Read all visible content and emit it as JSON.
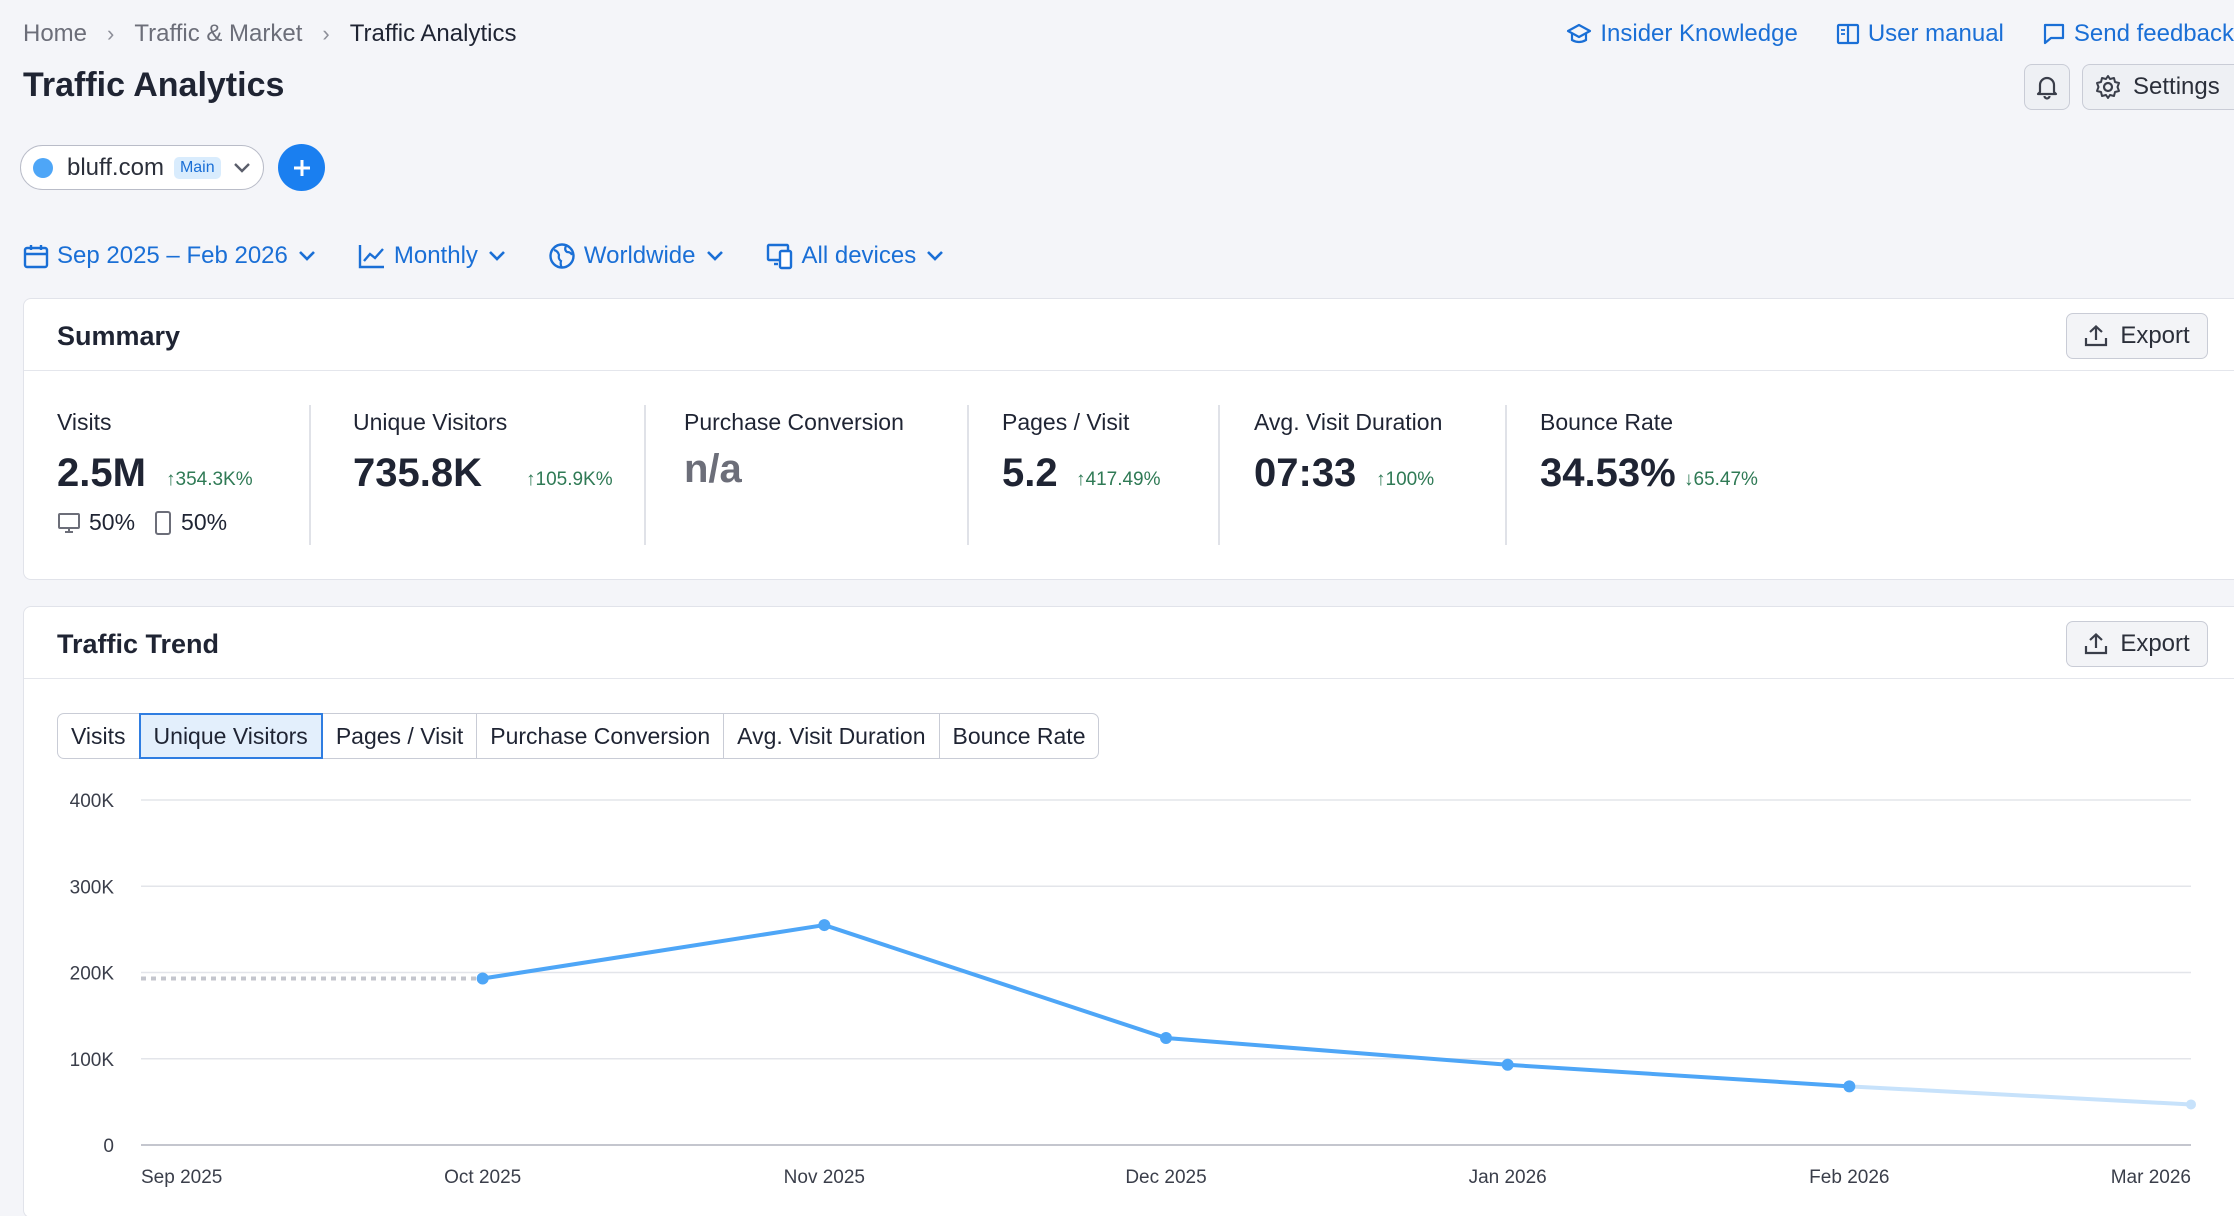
{
  "breadcrumb": {
    "items": [
      "Home",
      "Traffic & Market",
      "Traffic Analytics"
    ]
  },
  "toplinks": {
    "insider": "Insider Knowledge",
    "manual": "User manual",
    "feedback": "Send feedback"
  },
  "page": {
    "title": "Traffic Analytics"
  },
  "actions": {
    "settings": "Settings"
  },
  "domain": {
    "name": "bluff.com",
    "badge": "Main",
    "dot_color": "#4ea6f7"
  },
  "filters": {
    "date_range": "Sep 2025 – Feb 2026",
    "granularity": "Monthly",
    "location": "Worldwide",
    "devices": "All devices"
  },
  "summary": {
    "title": "Summary",
    "export_label": "Export",
    "metrics": [
      {
        "label": "Visits",
        "value": "2.5M",
        "change": "↑354.3K%"
      },
      {
        "label": "Unique Visitors",
        "value": "735.8K",
        "change": "↑105.9K%"
      },
      {
        "label": "Purchase Conversion",
        "value": "n/a",
        "change": ""
      },
      {
        "label": "Pages / Visit",
        "value": "5.2",
        "change": "↑417.49%"
      },
      {
        "label": "Avg. Visit Duration",
        "value": "07:33",
        "change": "↑100%"
      },
      {
        "label": "Bounce Rate",
        "value": "34.53%",
        "change": "↓65.47%"
      }
    ],
    "device_split": {
      "desktop": "50%",
      "mobile": "50%"
    }
  },
  "trend": {
    "title": "Traffic Trend",
    "export_label": "Export",
    "tabs": [
      "Visits",
      "Unique Visitors",
      "Pages / Visit",
      "Purchase Conversion",
      "Avg. Visit Duration",
      "Bounce Rate"
    ],
    "active_tab": "Unique Visitors"
  },
  "chart_data": {
    "type": "line",
    "title": "",
    "xlabel": "",
    "ylabel": "",
    "x": [
      "Sep 2025",
      "Oct 2025",
      "Nov 2025",
      "Dec 2025",
      "Jan 2026",
      "Feb 2026",
      "Mar 2026"
    ],
    "y_ticks": [
      "0",
      "100K",
      "200K",
      "300K",
      "400K"
    ],
    "ylim": [
      0,
      400000
    ],
    "grid": true,
    "series": [
      {
        "values": [
          193000,
          193000,
          255000,
          124000,
          93000,
          68000,
          47000
        ],
        "color": "#4ea6f7"
      }
    ],
    "dashed_segment": [
      "Sep 2025",
      "Oct 2025"
    ],
    "faded_segment": [
      "Feb 2026",
      "Mar 2026"
    ]
  }
}
